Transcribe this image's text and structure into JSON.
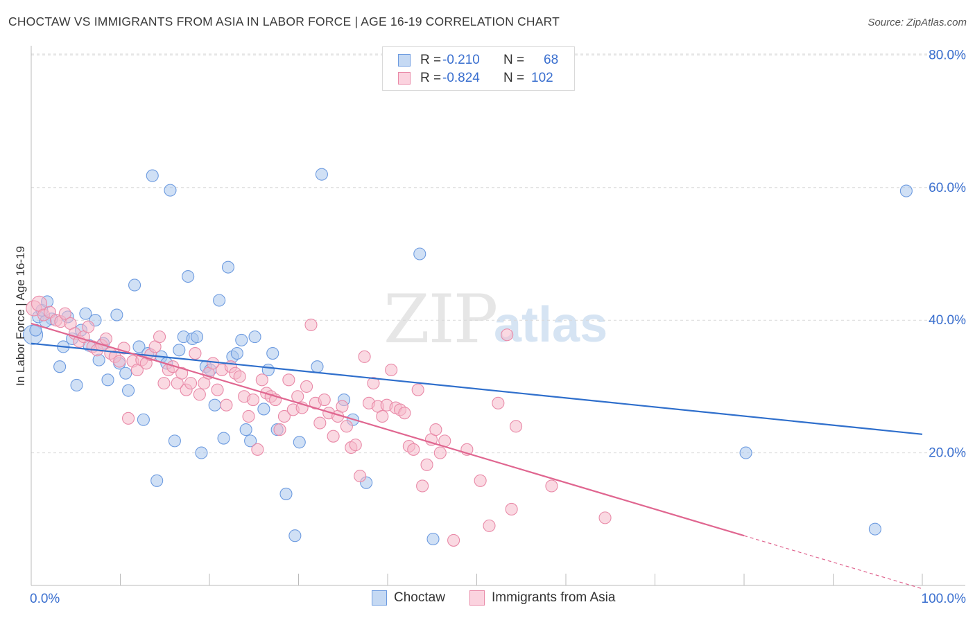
{
  "title": "CHOCTAW VS IMMIGRANTS FROM ASIA IN LABOR FORCE | AGE 16-19 CORRELATION CHART",
  "source": "Source: ZipAtlas.com",
  "watermark": {
    "zip": "ZIP",
    "atlas": "atlas"
  },
  "legend_top": {
    "rows": [
      {
        "r_label": "R =",
        "r_value": "-0.210",
        "n_label": "N =",
        "n_value": "68"
      },
      {
        "r_label": "R =",
        "r_value": "-0.824",
        "n_label": "N =",
        "n_value": "102"
      }
    ]
  },
  "legend_bottom": {
    "items": [
      {
        "label": "Choctaw"
      },
      {
        "label": "Immigrants from Asia"
      }
    ]
  },
  "colors": {
    "blue_fill": "#a9c6ec",
    "blue_stroke": "#6d9be0",
    "blue_line": "#2f6fcc",
    "pink_fill": "#f6b9cb",
    "pink_stroke": "#e98aa8",
    "pink_line": "#e06690",
    "axis_text": "#3a6fcf",
    "grid": "#d9d9d9"
  },
  "chart_data": {
    "type": "scatter",
    "title": "CHOCTAW VS IMMIGRANTS FROM ASIA IN LABOR FORCE | AGE 16-19 CORRELATION CHART",
    "ylabel": "In Labor Force | Age 16-19",
    "xlabel": "",
    "xlim": [
      0,
      100
    ],
    "ylim": [
      0,
      80
    ],
    "x_tick_labels": [
      "0.0%",
      "100.0%"
    ],
    "y_ticks": [
      20,
      40,
      60,
      80
    ],
    "y_tick_labels": [
      "20.0%",
      "40.0%",
      "60.0%",
      "80.0%"
    ],
    "grid": true,
    "legend_placement": "top-center",
    "series": [
      {
        "name": "Choctaw",
        "trend": {
          "x": [
            0,
            100
          ],
          "y": [
            36.5,
            22.8
          ]
        },
        "points": [
          [
            0.2,
            37.8
          ],
          [
            0.8,
            40.5
          ],
          [
            1.2,
            41.5
          ],
          [
            1.8,
            42.8
          ],
          [
            2.3,
            40.2
          ],
          [
            3.2,
            33.0
          ],
          [
            3.6,
            36.0
          ],
          [
            4.1,
            40.5
          ],
          [
            4.6,
            37.2
          ],
          [
            5.1,
            30.2
          ],
          [
            5.6,
            38.5
          ],
          [
            6.1,
            41.0
          ],
          [
            6.5,
            36.2
          ],
          [
            7.2,
            40.0
          ],
          [
            7.6,
            34.0
          ],
          [
            8.1,
            36.5
          ],
          [
            8.6,
            31.0
          ],
          [
            9.6,
            40.8
          ],
          [
            9.9,
            33.5
          ],
          [
            10.6,
            32.0
          ],
          [
            10.9,
            29.4
          ],
          [
            11.6,
            45.3
          ],
          [
            12.1,
            36.0
          ],
          [
            12.6,
            25.0
          ],
          [
            13.1,
            35.0
          ],
          [
            13.6,
            61.8
          ],
          [
            14.1,
            15.8
          ],
          [
            14.6,
            34.5
          ],
          [
            15.2,
            33.5
          ],
          [
            15.6,
            59.6
          ],
          [
            16.1,
            21.8
          ],
          [
            16.6,
            35.5
          ],
          [
            17.1,
            37.5
          ],
          [
            17.6,
            46.6
          ],
          [
            18.1,
            37.2
          ],
          [
            18.6,
            37.5
          ],
          [
            19.1,
            20.0
          ],
          [
            19.6,
            33.0
          ],
          [
            20.1,
            32.5
          ],
          [
            20.6,
            27.2
          ],
          [
            21.1,
            43.0
          ],
          [
            21.6,
            22.2
          ],
          [
            22.1,
            48.0
          ],
          [
            22.6,
            34.5
          ],
          [
            23.1,
            35.0
          ],
          [
            23.6,
            37.0
          ],
          [
            24.1,
            23.5
          ],
          [
            24.6,
            21.8
          ],
          [
            25.1,
            37.5
          ],
          [
            26.1,
            26.6
          ],
          [
            26.6,
            32.5
          ],
          [
            27.1,
            35.0
          ],
          [
            27.6,
            23.5
          ],
          [
            28.6,
            13.8
          ],
          [
            29.6,
            7.5
          ],
          [
            30.1,
            21.6
          ],
          [
            32.1,
            33.0
          ],
          [
            32.6,
            62.0
          ],
          [
            35.1,
            28.0
          ],
          [
            36.1,
            25.0
          ],
          [
            37.6,
            15.5
          ],
          [
            43.6,
            50.0
          ],
          [
            45.1,
            7.0
          ],
          [
            80.2,
            20.0
          ],
          [
            94.7,
            8.5
          ],
          [
            98.2,
            59.5
          ],
          [
            0.5,
            38.5
          ],
          [
            1.6,
            39.8
          ]
        ]
      },
      {
        "name": "Immigrants from Asia",
        "trend": {
          "x": [
            0,
            80
          ],
          "y": [
            39.5,
            7.5
          ]
        },
        "trend_dashed": {
          "x": [
            80,
            100
          ],
          "y": [
            7.5,
            -0.5
          ]
        },
        "points": [
          [
            0.3,
            41.8
          ],
          [
            0.9,
            42.5
          ],
          [
            1.4,
            40.8
          ],
          [
            2.1,
            41.2
          ],
          [
            2.8,
            40.0
          ],
          [
            3.3,
            39.8
          ],
          [
            3.8,
            41.0
          ],
          [
            4.4,
            39.5
          ],
          [
            4.9,
            38.0
          ],
          [
            5.4,
            36.8
          ],
          [
            5.9,
            37.5
          ],
          [
            6.4,
            39.0
          ],
          [
            6.9,
            36.0
          ],
          [
            7.4,
            35.5
          ],
          [
            7.9,
            36.2
          ],
          [
            8.4,
            37.2
          ],
          [
            8.9,
            35.0
          ],
          [
            9.4,
            34.5
          ],
          [
            9.9,
            33.8
          ],
          [
            10.4,
            35.8
          ],
          [
            10.9,
            25.2
          ],
          [
            11.4,
            33.8
          ],
          [
            11.9,
            32.5
          ],
          [
            12.4,
            34.0
          ],
          [
            12.9,
            33.5
          ],
          [
            13.4,
            34.8
          ],
          [
            13.9,
            36.0
          ],
          [
            14.4,
            37.5
          ],
          [
            14.9,
            30.5
          ],
          [
            15.4,
            32.5
          ],
          [
            15.9,
            33.0
          ],
          [
            16.4,
            30.5
          ],
          [
            16.9,
            32.0
          ],
          [
            17.4,
            29.5
          ],
          [
            17.9,
            30.5
          ],
          [
            18.4,
            35.0
          ],
          [
            18.9,
            28.8
          ],
          [
            19.4,
            30.5
          ],
          [
            19.9,
            32.0
          ],
          [
            20.4,
            33.5
          ],
          [
            20.9,
            29.5
          ],
          [
            21.4,
            32.5
          ],
          [
            21.9,
            27.2
          ],
          [
            22.4,
            33.0
          ],
          [
            22.9,
            32.0
          ],
          [
            23.4,
            31.5
          ],
          [
            23.9,
            28.5
          ],
          [
            24.4,
            25.5
          ],
          [
            24.9,
            28.0
          ],
          [
            25.4,
            20.5
          ],
          [
            25.9,
            31.0
          ],
          [
            26.4,
            29.0
          ],
          [
            26.9,
            28.5
          ],
          [
            27.4,
            28.0
          ],
          [
            27.9,
            23.5
          ],
          [
            28.4,
            25.5
          ],
          [
            28.9,
            31.0
          ],
          [
            29.4,
            26.5
          ],
          [
            29.9,
            28.5
          ],
          [
            30.4,
            26.8
          ],
          [
            30.9,
            30.0
          ],
          [
            31.4,
            39.3
          ],
          [
            31.9,
            27.5
          ],
          [
            32.4,
            24.5
          ],
          [
            32.9,
            28.0
          ],
          [
            33.4,
            26.0
          ],
          [
            33.9,
            22.5
          ],
          [
            34.4,
            25.5
          ],
          [
            34.9,
            27.0
          ],
          [
            35.4,
            24.0
          ],
          [
            35.9,
            20.8
          ],
          [
            36.4,
            21.2
          ],
          [
            36.9,
            16.5
          ],
          [
            37.4,
            34.5
          ],
          [
            37.9,
            27.5
          ],
          [
            38.4,
            30.5
          ],
          [
            38.9,
            27.0
          ],
          [
            39.4,
            25.5
          ],
          [
            39.9,
            27.2
          ],
          [
            40.4,
            32.5
          ],
          [
            40.9,
            26.8
          ],
          [
            41.4,
            26.5
          ],
          [
            41.9,
            26.0
          ],
          [
            42.4,
            21.0
          ],
          [
            42.9,
            20.5
          ],
          [
            43.4,
            29.5
          ],
          [
            43.9,
            15.0
          ],
          [
            44.4,
            18.2
          ],
          [
            44.9,
            22.0
          ],
          [
            45.4,
            23.5
          ],
          [
            45.9,
            20.0
          ],
          [
            46.4,
            21.8
          ],
          [
            47.4,
            6.8
          ],
          [
            50.4,
            15.8
          ],
          [
            51.4,
            9.0
          ],
          [
            53.4,
            37.8
          ],
          [
            53.9,
            11.5
          ],
          [
            54.4,
            24.0
          ],
          [
            58.4,
            15.0
          ],
          [
            64.4,
            10.2
          ],
          [
            48.9,
            20.5
          ],
          [
            52.4,
            27.5
          ]
        ]
      }
    ]
  }
}
